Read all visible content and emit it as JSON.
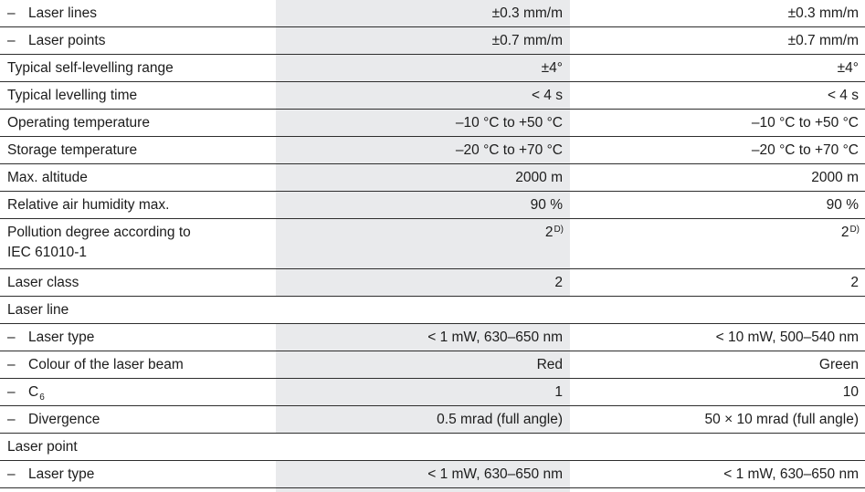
{
  "table": {
    "dash_glyph": "–",
    "colors": {
      "shade_column": "#e9eaec",
      "separator_line": "#2e2e2e",
      "text": "#1c1c1c",
      "background": "#ffffff"
    },
    "rows": [
      {
        "type": "data",
        "dash": true,
        "label": "Laser lines",
        "values": [
          "±0.3 mm/m",
          "±0.3 mm/m"
        ]
      },
      {
        "type": "data",
        "dash": true,
        "label": "Laser points",
        "values": [
          "±0.7 mm/m",
          "±0.7 mm/m"
        ]
      },
      {
        "type": "data",
        "dash": false,
        "label": "Typical self-levelling range",
        "values": [
          "±4°",
          "±4°"
        ]
      },
      {
        "type": "data",
        "dash": false,
        "label": "Typical levelling time",
        "values": [
          "< 4 s",
          "< 4 s"
        ]
      },
      {
        "type": "data",
        "dash": false,
        "label": "Operating temperature",
        "values": [
          "–10 °C to +50 °C",
          "–10 °C to +50 °C"
        ]
      },
      {
        "type": "data",
        "dash": false,
        "label": "Storage temperature",
        "values": [
          "–20 °C to +70 °C",
          "–20 °C to +70 °C"
        ]
      },
      {
        "type": "data",
        "dash": false,
        "label": "Max. altitude",
        "values": [
          "2000 m",
          "2000 m"
        ]
      },
      {
        "type": "data",
        "dash": false,
        "label": "Relative air humidity max.",
        "values": [
          "90 %",
          "90 %"
        ]
      },
      {
        "type": "data",
        "dash": false,
        "tall": true,
        "label": "Pollution degree according to\nIEC 61010-1",
        "values": [
          "2",
          "2"
        ],
        "value_sup": "D)"
      },
      {
        "type": "data",
        "dash": false,
        "label": "Laser class",
        "values": [
          "2",
          "2"
        ]
      },
      {
        "type": "section",
        "label": "Laser line"
      },
      {
        "type": "data",
        "dash": true,
        "label": "Laser type",
        "values": [
          "< 1 mW, 630–650 nm",
          "< 10 mW, 500–540 nm"
        ]
      },
      {
        "type": "data",
        "dash": true,
        "label": "Colour of the laser beam",
        "values": [
          "Red",
          "Green"
        ]
      },
      {
        "type": "data",
        "dash": true,
        "label": "C",
        "label_sub": "6",
        "values": [
          "1",
          "10"
        ]
      },
      {
        "type": "data",
        "dash": true,
        "label": "Divergence",
        "values": [
          "0.5 mrad (full angle)",
          "50 × 10 mrad (full angle)"
        ]
      },
      {
        "type": "section",
        "label": "Laser point"
      },
      {
        "type": "data",
        "dash": true,
        "label": "Laser type",
        "values": [
          "< 1 mW, 630–650 nm",
          "< 1 mW, 630–650 nm"
        ]
      }
    ]
  }
}
